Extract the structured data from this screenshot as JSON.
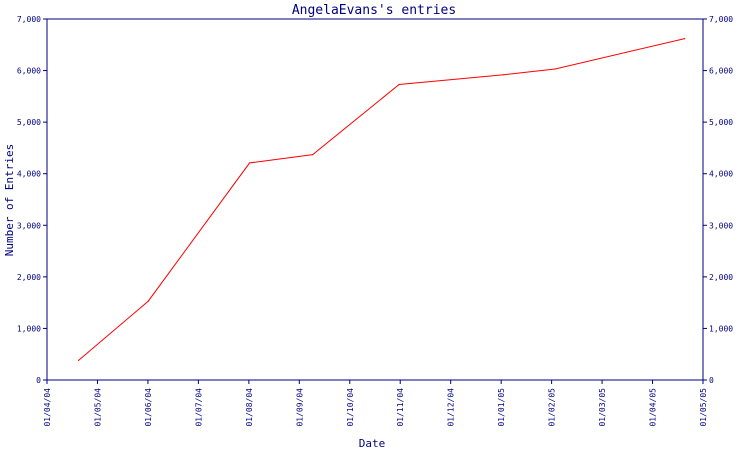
{
  "chart_data": {
    "type": "line",
    "title": "AngelaEvans's entries",
    "xlabel": "Date",
    "ylabel": "Number of Entries",
    "x_ticks": [
      "01/04/04",
      "01/05/04",
      "01/06/04",
      "01/07/04",
      "01/08/04",
      "01/09/04",
      "01/10/04",
      "01/11/04",
      "01/12/04",
      "01/01/05",
      "01/02/05",
      "01/03/05",
      "01/04/05",
      "01/05/05"
    ],
    "y_ticks": [
      "0",
      "1,000",
      "2,000",
      "3,000",
      "4,000",
      "5,000",
      "6,000",
      "7,000"
    ],
    "xlim": [
      "2004-04-01",
      "2005-05-01"
    ],
    "ylim": [
      0,
      7000
    ],
    "grid": false,
    "colors": {
      "line": "#ff0000",
      "axis": "#000080",
      "text": "#000080"
    },
    "series": [
      {
        "x": [
          "2004-04-20",
          "2004-06-01",
          "2004-08-01",
          "2004-09-08",
          "2004-10-30",
          "2005-01-01",
          "2005-02-01",
          "2005-04-20"
        ],
        "y": [
          380,
          1530,
          4210,
          4370,
          5730,
          5920,
          6030,
          6620
        ]
      }
    ]
  }
}
